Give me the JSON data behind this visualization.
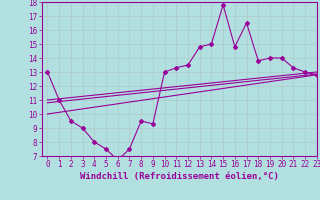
{
  "xlabel": "Windchill (Refroidissement éolien,°C)",
  "xlim": [
    -0.5,
    23
  ],
  "ylim": [
    7,
    18
  ],
  "yticks": [
    7,
    8,
    9,
    10,
    11,
    12,
    13,
    14,
    15,
    16,
    17,
    18
  ],
  "xticks": [
    0,
    1,
    2,
    3,
    4,
    5,
    6,
    7,
    8,
    9,
    10,
    11,
    12,
    13,
    14,
    15,
    16,
    17,
    18,
    19,
    20,
    21,
    22,
    23
  ],
  "main_line_x": [
    0,
    1,
    2,
    3,
    4,
    5,
    6,
    7,
    8,
    9,
    10,
    11,
    12,
    13,
    14,
    15,
    16,
    17,
    18,
    19,
    20,
    21,
    22,
    23
  ],
  "main_line_y": [
    13,
    11,
    9.5,
    9,
    8,
    7.5,
    6.7,
    7.5,
    9.5,
    9.3,
    13,
    13.3,
    13.5,
    14.8,
    15,
    17.8,
    14.8,
    16.5,
    13.8,
    14,
    14,
    13.3,
    13,
    12.8
  ],
  "reg_line1_x": [
    0,
    23
  ],
  "reg_line1_y": [
    11,
    13.0
  ],
  "reg_line2_x": [
    0,
    23
  ],
  "reg_line2_y": [
    10,
    12.8
  ],
  "reg_line3_x": [
    0,
    23
  ],
  "reg_line3_y": [
    10.8,
    12.85
  ],
  "color": "#990099",
  "bg_color": "#b2e0e0",
  "grid_color": "#b0c8c8",
  "xlabel_fontsize": 6.5,
  "tick_fontsize": 5.5
}
